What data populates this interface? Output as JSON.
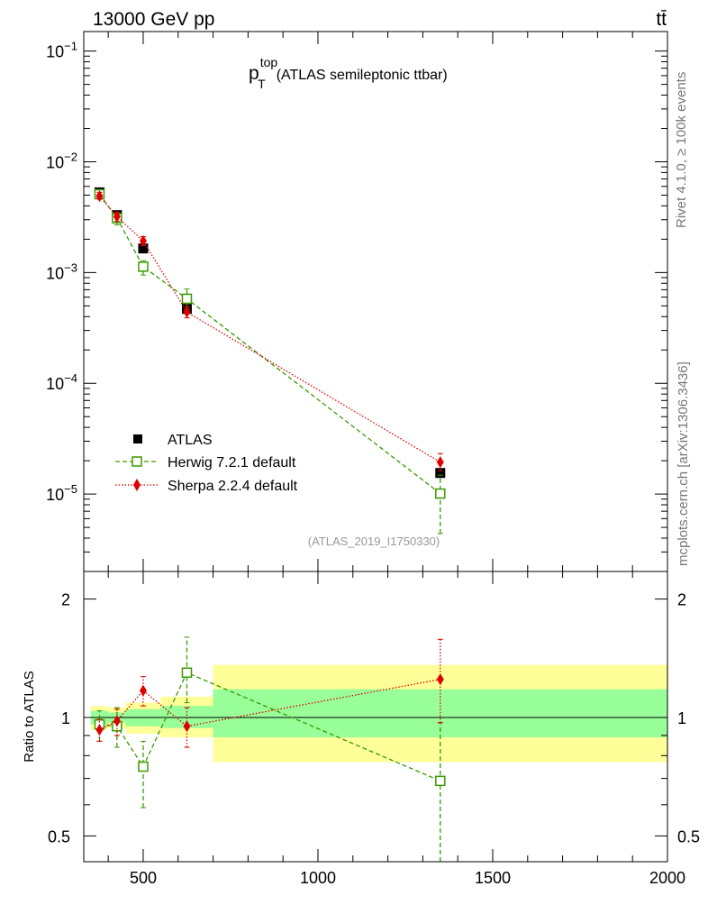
{
  "header": {
    "left": "13000 GeV pp",
    "right": "tt̄"
  },
  "side_text": {
    "top": "Rivet 4.1.0, ≥ 100k events",
    "bottom": "mcplots.cern.ch [arXiv:1306.3436]"
  },
  "watermark": "(ATLAS_2019_I1750330)",
  "chart_data": {
    "type": "scatter",
    "title": {
      "main": "p",
      "sup": "top",
      "sub": "T",
      "rest": "(ATLAS semileptonic ttbar)"
    },
    "xlabel": "",
    "xlim": [
      330,
      2000
    ],
    "xticks": [
      500,
      1000,
      1500,
      2000
    ],
    "x_ticklabels": [
      "500",
      "1000",
      "1500",
      "2000"
    ],
    "main_panel": {
      "yscale": "log",
      "ylim": [
        2e-06,
        0.15
      ],
      "yticks": [
        1e-05,
        0.0001,
        0.001,
        0.01,
        0.1
      ],
      "y_ticklabels": [
        {
          "base": "10",
          "exp": "−5"
        },
        {
          "base": "10",
          "exp": "−4"
        },
        {
          "base": "10",
          "exp": "−3"
        },
        {
          "base": "10",
          "exp": "−2"
        },
        {
          "base": "10",
          "exp": "−1"
        }
      ]
    },
    "ratio_panel": {
      "ylabel": "Ratio to ATLAS",
      "yscale": "log",
      "ylim": [
        0.43,
        2.35
      ],
      "yticks": [
        0.5,
        1,
        2
      ],
      "y_ticklabels": [
        "0.5",
        "1",
        "2"
      ],
      "bins": [
        {
          "lo": 350,
          "hi": 400,
          "green": [
            0.96,
            1.04
          ],
          "yellow": [
            0.93,
            1.07
          ]
        },
        {
          "lo": 400,
          "hi": 450,
          "green": [
            0.97,
            1.03
          ],
          "yellow": [
            0.94,
            1.06
          ]
        },
        {
          "lo": 450,
          "hi": 550,
          "green": [
            0.95,
            1.05
          ],
          "yellow": [
            0.91,
            1.09
          ]
        },
        {
          "lo": 550,
          "hi": 700,
          "green": [
            0.94,
            1.07
          ],
          "yellow": [
            0.89,
            1.13
          ]
        },
        {
          "lo": 700,
          "hi": 2000,
          "green": [
            0.89,
            1.18
          ],
          "yellow": [
            0.77,
            1.36
          ]
        }
      ]
    },
    "series": [
      {
        "name": "ATLAS",
        "color": "#000000",
        "marker": "square-filled",
        "x": [
          375,
          425,
          500,
          625,
          1350
        ],
        "y": [
          0.0053,
          0.0033,
          0.00165,
          0.00047,
          1.55e-05
        ],
        "yerr": [
          0.0002,
          0.0001,
          8e-05,
          4e-05,
          1.5e-06
        ],
        "ratio": [
          1,
          1,
          1,
          1,
          1
        ]
      },
      {
        "name": "Herwig 7.2.1 default",
        "color": "#3a9a00",
        "marker": "square-open",
        "line": "dashed",
        "x": [
          375,
          425,
          500,
          625,
          1350
        ],
        "y": [
          0.0051,
          0.0031,
          0.00113,
          0.00058,
          1.01e-05
        ],
        "y_lo": [
          0.0046,
          0.0027,
          0.00095,
          0.00047,
          4.4e-06
        ],
        "y_hi": [
          0.0056,
          0.0034,
          0.00128,
          0.00071,
          1.48e-05
        ],
        "ratio": [
          0.96,
          0.95,
          0.75,
          1.3,
          0.69
        ],
        "ratio_lo": [
          0.87,
          0.84,
          0.59,
          1.09,
          0.43
        ],
        "ratio_hi": [
          1.04,
          1.06,
          0.87,
          1.6,
          0.97
        ]
      },
      {
        "name": "Sherpa 2.2.4 default",
        "color": "#e00000",
        "marker": "diamond-filled",
        "line": "dotted",
        "x": [
          375,
          425,
          500,
          625,
          1350
        ],
        "y": [
          0.0049,
          0.0032,
          0.00193,
          0.00044,
          1.94e-05
        ],
        "y_lo": [
          0.0046,
          0.0029,
          0.00175,
          0.00039,
          1.63e-05
        ],
        "y_hi": [
          0.0053,
          0.0035,
          0.00211,
          0.00049,
          2.32e-05
        ],
        "ratio": [
          0.93,
          0.98,
          1.17,
          0.95,
          1.25
        ],
        "ratio_lo": [
          0.87,
          0.9,
          1.07,
          0.84,
          0.97
        ],
        "ratio_hi": [
          0.99,
          1.05,
          1.27,
          1.06,
          1.58
        ]
      }
    ]
  }
}
